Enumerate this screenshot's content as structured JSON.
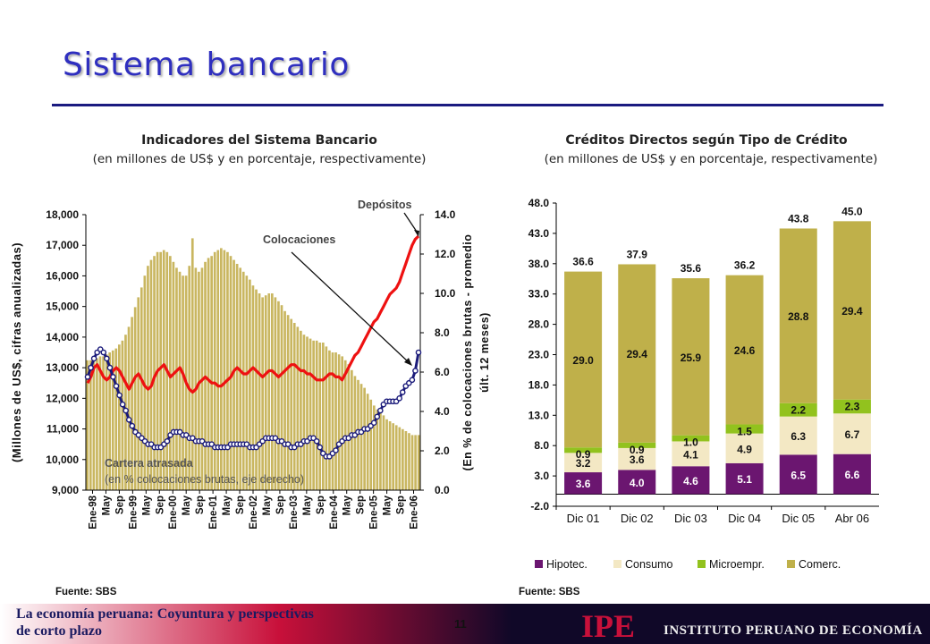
{
  "header": {
    "title": "Sistema bancario"
  },
  "left_chart": {
    "title": "Indicadores del Sistema Bancario",
    "subtitle": "(en millones de US$ y en porcentaje, respectivamente)",
    "ylabel_left": "(Millones de US$, cifras anualizadas)",
    "ylabel_right": "(En % de colocaciones brutas - promedio últ. 12 meses)",
    "annot_depositos": "Depósitos",
    "annot_colocaciones": "Colocaciones",
    "annot_cartera_1": "Cartera atrasada",
    "annot_cartera_2": "(en % colocaciones brutas, eje derecho)",
    "source": "Fuente: SBS"
  },
  "right_chart": {
    "title": "Créditos Directos según Tipo de Crédito",
    "subtitle": "(en millones de US$ y en porcentaje, respectivamente)",
    "source": "Fuente: SBS"
  },
  "chart_data": [
    {
      "type": "line",
      "title": "Indicadores del Sistema Bancario",
      "x_ticks": [
        "Ene-98",
        "May",
        "Sep",
        "Ene-99",
        "May",
        "Sep",
        "Ene-00",
        "May",
        "Sep",
        "Ene-01",
        "May",
        "Sep",
        "Ene-02",
        "May",
        "Sep",
        "Ene-03",
        "May",
        "Sep",
        "Ene-04",
        "May",
        "Sep",
        "Ene-05",
        "May",
        "Sep",
        "Ene-06"
      ],
      "ylim_left": [
        9000,
        18000
      ],
      "ylim_right": [
        0.0,
        14.0
      ],
      "yticks_left": [
        "18,000",
        "17,000",
        "16,000",
        "15,000",
        "14,000",
        "13,000",
        "12,000",
        "11,000",
        "10,000",
        "9,000"
      ],
      "yticks_right": [
        "14.0",
        "12.0",
        "10.0",
        "8.0",
        "6.0",
        "4.0",
        "2.0",
        "0.0"
      ],
      "series": [
        {
          "name": "Depósitos",
          "axis": "left",
          "color": "#ee1111",
          "style": "line",
          "values": [
            12500,
            12700,
            13000,
            13100,
            12900,
            12700,
            12600,
            12700,
            12900,
            13000,
            12900,
            12700,
            12500,
            12300,
            12500,
            12700,
            12800,
            12600,
            12400,
            12300,
            12400,
            12700,
            12900,
            13000,
            13100,
            12900,
            12700,
            12800,
            12900,
            13000,
            12800,
            12500,
            12300,
            12200,
            12300,
            12500,
            12600,
            12700,
            12600,
            12500,
            12500,
            12400,
            12400,
            12500,
            12600,
            12700,
            12900,
            13000,
            12900,
            12800,
            12800,
            12900,
            13000,
            12900,
            12800,
            12700,
            12800,
            12900,
            12900,
            12800,
            12700,
            12800,
            12900,
            13000,
            13100,
            13100,
            13000,
            12900,
            12900,
            12800,
            12800,
            12700,
            12600,
            12600,
            12600,
            12700,
            12800,
            12800,
            12700,
            12700,
            12600,
            12800,
            13000,
            13200,
            13400,
            13500,
            13700,
            13900,
            14100,
            14300,
            14500,
            14600,
            14800,
            15000,
            15200,
            15400,
            15500,
            15600,
            15800,
            16100,
            16400,
            16700,
            17000,
            17200,
            17300
          ]
        },
        {
          "name": "Colocaciones",
          "axis": "left",
          "color": "#1a1a7a",
          "style": "line-markers",
          "values": [
            12700,
            13000,
            13300,
            13500,
            13600,
            13500,
            13300,
            13000,
            12700,
            12400,
            12100,
            11800,
            11600,
            11300,
            11100,
            10900,
            10800,
            10700,
            10600,
            10500,
            10500,
            10400,
            10400,
            10400,
            10500,
            10600,
            10800,
            10900,
            10900,
            10900,
            10800,
            10800,
            10700,
            10700,
            10600,
            10600,
            10600,
            10500,
            10500,
            10500,
            10400,
            10400,
            10400,
            10400,
            10400,
            10500,
            10500,
            10500,
            10500,
            10500,
            10500,
            10400,
            10400,
            10400,
            10500,
            10600,
            10700,
            10700,
            10700,
            10700,
            10600,
            10600,
            10500,
            10500,
            10400,
            10400,
            10500,
            10500,
            10600,
            10600,
            10700,
            10700,
            10600,
            10400,
            10200,
            10100,
            10100,
            10200,
            10300,
            10500,
            10600,
            10700,
            10700,
            10800,
            10800,
            10900,
            10900,
            11000,
            11000,
            11100,
            11200,
            11400,
            11600,
            11800,
            11900,
            11900,
            11900,
            11900,
            12000,
            12200,
            12400,
            12500,
            12600,
            12900,
            13500
          ]
        },
        {
          "name": "Cartera atrasada",
          "axis": "right",
          "color": "#c9b660",
          "style": "bar",
          "values": [
            6.6,
            6.6,
            6.7,
            6.7,
            6.8,
            6.8,
            6.9,
            7.0,
            7.1,
            7.2,
            7.4,
            7.6,
            7.9,
            8.3,
            8.8,
            9.3,
            9.8,
            10.3,
            10.9,
            11.4,
            11.7,
            11.9,
            12.1,
            12.1,
            12.2,
            12.1,
            11.9,
            11.6,
            11.3,
            11.1,
            10.9,
            10.9,
            11.4,
            12.8,
            11.3,
            11.1,
            11.3,
            11.6,
            11.8,
            11.9,
            12.1,
            12.2,
            12.3,
            12.2,
            12.1,
            11.9,
            11.7,
            11.5,
            11.3,
            11.1,
            10.9,
            10.7,
            10.4,
            10.2,
            10.0,
            9.8,
            9.9,
            10.0,
            10.0,
            9.8,
            9.6,
            9.4,
            9.1,
            8.9,
            8.7,
            8.5,
            8.3,
            8.1,
            7.9,
            7.8,
            7.7,
            7.6,
            7.6,
            7.5,
            7.5,
            7.3,
            7.1,
            7.0,
            7.0,
            6.9,
            6.8,
            6.6,
            6.4,
            6.1,
            5.8,
            5.6,
            5.4,
            5.2,
            4.9,
            4.6,
            4.3,
            4.1,
            4.0,
            3.8,
            3.6,
            3.5,
            3.4,
            3.3,
            3.2,
            3.1,
            3.0,
            2.9,
            2.8,
            2.8,
            2.8
          ]
        }
      ],
      "legend": "none"
    },
    {
      "type": "bar",
      "title": "Créditos Directos según Tipo de Crédito",
      "stacked": true,
      "categories": [
        "Dic 01",
        "Dic 02",
        "Dic 03",
        "Dic 04",
        "Dic 05",
        "Abr 06"
      ],
      "ylim": [
        -2.0,
        48.0
      ],
      "yticks": [
        "48.0",
        "43.0",
        "38.0",
        "33.0",
        "28.0",
        "23.0",
        "18.0",
        "13.0",
        "8.0",
        "3.0",
        "-2.0"
      ],
      "totals": [
        "36.6",
        "37.9",
        "35.6",
        "36.2",
        "43.8",
        "45.0"
      ],
      "series": [
        {
          "name": "Hipotec.",
          "color": "#6b1670",
          "values": [
            3.6,
            4.0,
            4.6,
            5.1,
            6.5,
            6.6
          ],
          "labels": [
            "3.6",
            "4.0",
            "4.6",
            "5.1",
            "6.5",
            "6.6"
          ]
        },
        {
          "name": "Consumo",
          "color": "#f3e8c4",
          "values": [
            3.2,
            3.6,
            4.1,
            4.9,
            6.3,
            6.7
          ],
          "labels": [
            "3.2",
            "3.6",
            "4.1",
            "4.9",
            "6.3",
            "6.7"
          ]
        },
        {
          "name": "Microempr.",
          "color": "#92c21e",
          "values": [
            0.9,
            0.9,
            1.0,
            1.5,
            2.2,
            2.3
          ],
          "labels": [
            "0.9",
            "0.9",
            "1.0",
            "1.5",
            "2.2",
            "2.3"
          ]
        },
        {
          "name": "Comerc.",
          "color": "#bfb04a",
          "values": [
            29.0,
            29.4,
            25.9,
            24.6,
            28.8,
            29.4
          ],
          "labels": [
            "29.0",
            "29.4",
            "25.9",
            "24.6",
            "28.8",
            "29.4"
          ]
        }
      ],
      "legend": "bottom"
    }
  ],
  "footer": {
    "text_line1": "La economía peruana: Coyuntura y perspectivas",
    "text_line2": "de corto plazo",
    "page": "11",
    "logo": "IPE",
    "institute": "INSTITUTO PERUANO DE ECONOMÍA"
  }
}
